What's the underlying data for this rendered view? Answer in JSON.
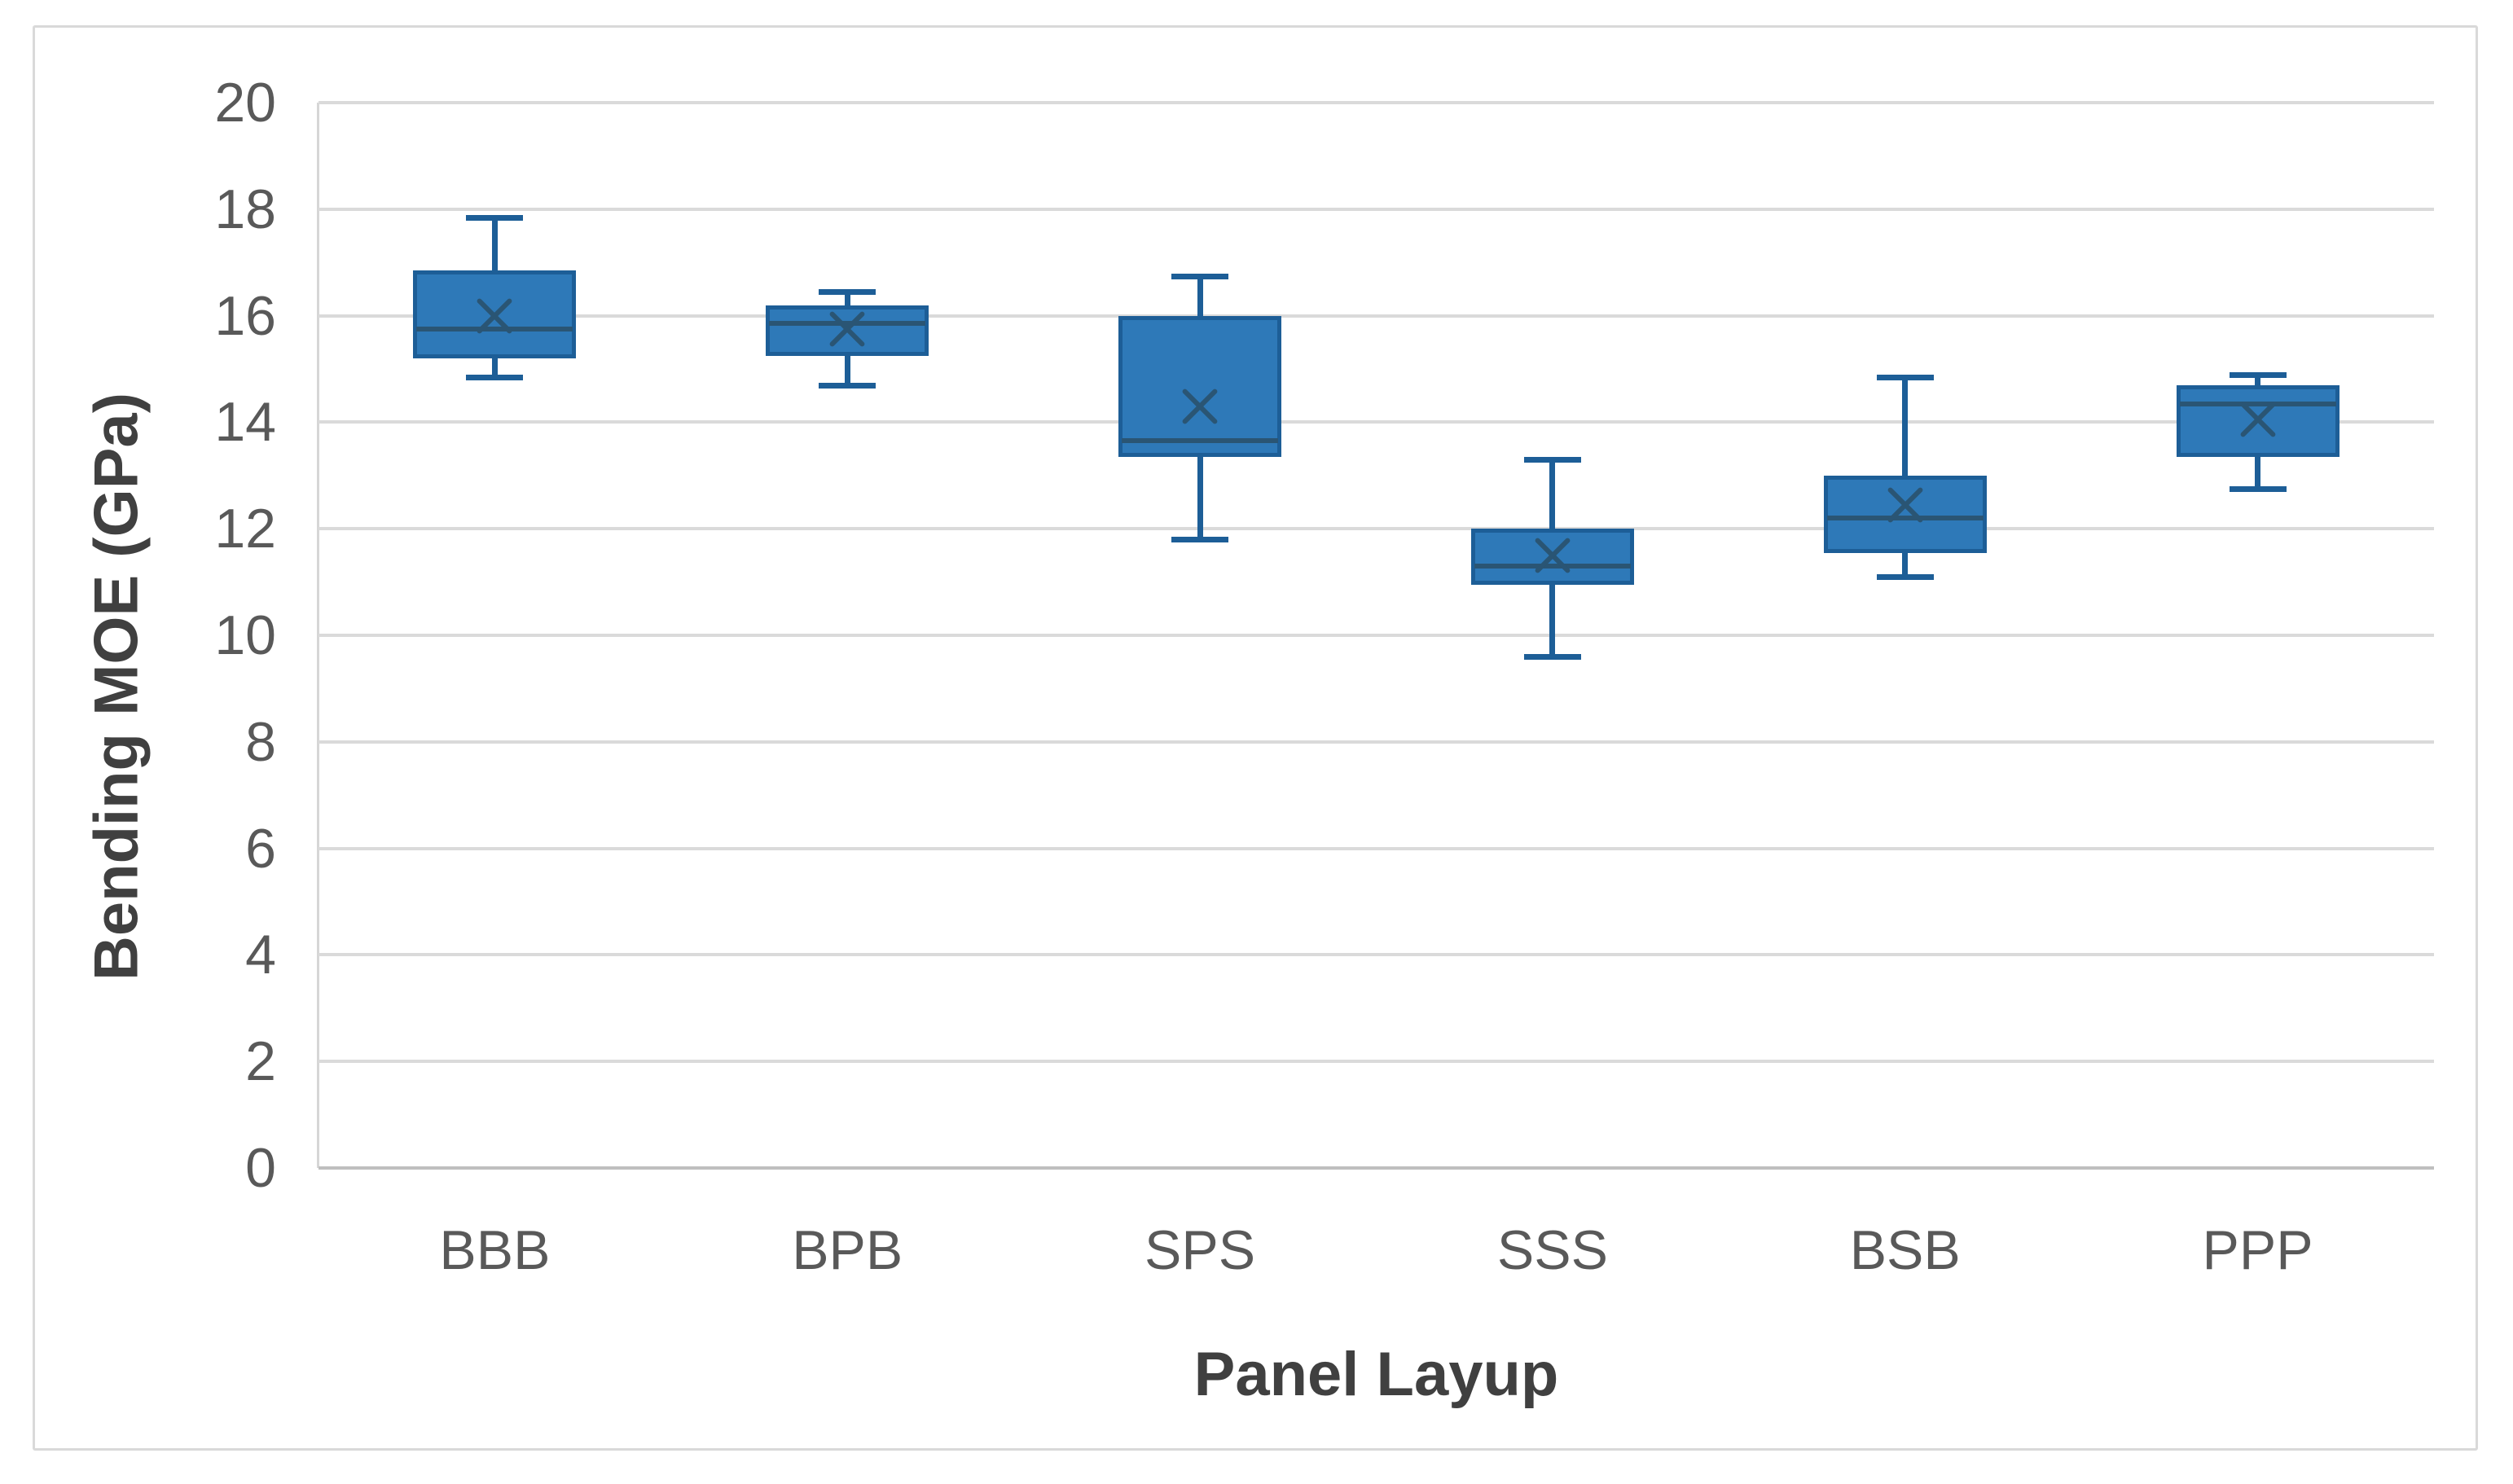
{
  "chart_data": {
    "type": "box",
    "title": "",
    "xlabel": "Panel Layup",
    "ylabel": "Bending MOE (GPa)",
    "ylim": [
      0,
      20
    ],
    "yticks": [
      0,
      2,
      4,
      6,
      8,
      10,
      12,
      14,
      16,
      18,
      20
    ],
    "grid": "horizontal-major",
    "legend": "none",
    "categories": [
      "BBB",
      "BPB",
      "SPS",
      "SSS",
      "BSB",
      "PPP"
    ],
    "series": [
      {
        "name": "BBB",
        "min": 14.85,
        "q1": 15.2,
        "median": 15.75,
        "q3": 16.85,
        "max": 17.85,
        "mean": 16.0
      },
      {
        "name": "BPB",
        "min": 14.7,
        "q1": 15.25,
        "median": 15.85,
        "q3": 16.2,
        "max": 16.45,
        "mean": 15.75
      },
      {
        "name": "SPS",
        "min": 11.8,
        "q1": 13.35,
        "median": 13.65,
        "q3": 16.0,
        "max": 16.75,
        "mean": 14.3
      },
      {
        "name": "SSS",
        "min": 9.6,
        "q1": 10.95,
        "median": 11.3,
        "q3": 12.0,
        "max": 13.3,
        "mean": 11.5
      },
      {
        "name": "BSB",
        "min": 11.1,
        "q1": 11.55,
        "median": 12.2,
        "q3": 13.0,
        "max": 14.85,
        "mean": 12.45
      },
      {
        "name": "PPP",
        "min": 12.75,
        "q1": 13.35,
        "median": 14.35,
        "q3": 14.7,
        "max": 14.9,
        "mean": 14.05
      }
    ],
    "colors": {
      "box_fill": "#2E79B8",
      "box_stroke": "#1D5E97",
      "median_and_mean": "#2A5574",
      "gridline": "#DADADA",
      "axis_line": "#BFBFBF",
      "tick_text": "#595959",
      "title_text": "#404040",
      "frame_border": "#D9D9D9",
      "background": "#FFFFFF"
    }
  }
}
